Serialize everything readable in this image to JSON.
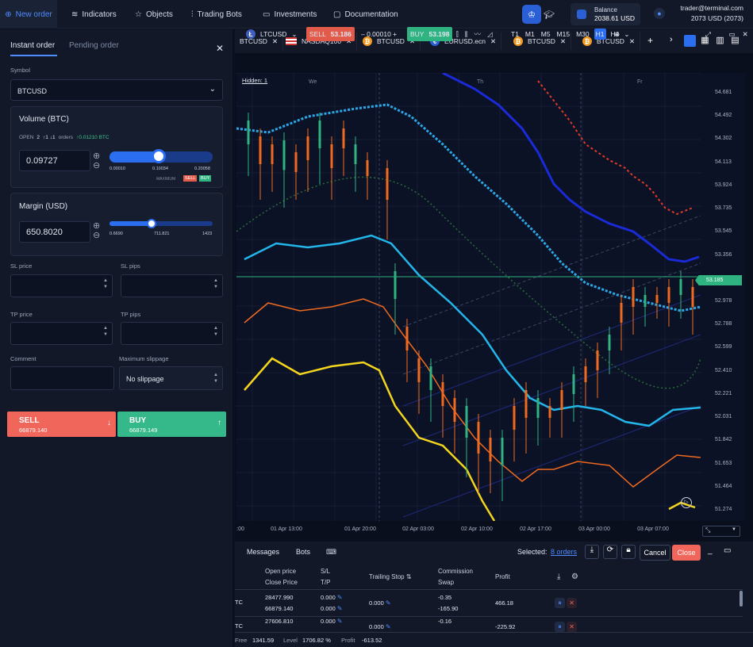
{
  "topbar": {
    "new_order": "New order",
    "indicators": "Indicators",
    "objects": "Objects",
    "trading_bots": "Trading Bots",
    "investments": "Investments",
    "documentation": "Documentation",
    "balance_label": "Balance",
    "balance_value": "2038.61 USD",
    "user_email": "trader@terminal.com",
    "user_balance": "2073 USD (2073)"
  },
  "order_panel": {
    "tab_instant": "Instant order",
    "tab_pending": "Pending order",
    "symbol_label": "Symbol",
    "symbol_value": "BTCUSD",
    "volume_title": "Volume (BTC)",
    "open_label": "OPEN",
    "open_count": "2",
    "open_up": "1",
    "open_down": "1",
    "orders_label": "orders",
    "open_delta": "0.01210 BTC",
    "volume_value": "0.09727",
    "vol_min": "0.00010",
    "vol_mid": "0.10034",
    "vol_max": "0.20058",
    "vol_level": 0.48,
    "maximum": "MAXIMUM",
    "sell_tag": "SELL",
    "buy_tag": "BUY",
    "margin_title": "Margin (USD)",
    "margin_value": "650.8020",
    "mar_min": "0.6690",
    "mar_mid": "711.821",
    "mar_max": "1423",
    "mar_level": 0.41,
    "sl_price": "SL price",
    "sl_pips": "SL pips",
    "tp_price": "TP price",
    "tp_pips": "TP pips",
    "comment": "Comment",
    "max_slippage": "Maximum slippage",
    "slippage_value": "No slippage",
    "sell_label": "SELL",
    "sell_price": "66879.140",
    "buy_label": "BUY",
    "buy_price": "66879.149"
  },
  "chart_tabs": [
    "BTCUSD",
    "NASDAQ100",
    "BTCUSD",
    "EURUSD.ecn",
    "BTCUSD",
    "BTCUSD"
  ],
  "toolbar": {
    "symbol": "LTCUSD",
    "sell": "SELL",
    "sell_price": "53.186",
    "spread": "– 0.00010 +",
    "buy": "BUY",
    "buy_price": "53.198",
    "timeframes": [
      "T1",
      "M1",
      "M5",
      "M15",
      "M30",
      "H1",
      "H4"
    ],
    "active_tf": "H1"
  },
  "chart": {
    "hidden": "Hidden: 1",
    "days": [
      "We",
      "Th",
      "Fr"
    ],
    "current_price": "53.185"
  },
  "chart_data": {
    "type": "line",
    "yticks": [
      "54.681",
      "54.492",
      "54.302",
      "54.113",
      "53.924",
      "53.735",
      "53.545",
      "53.356",
      "53.167",
      "52.978",
      "52.788",
      "52.599",
      "52.410",
      "52.221",
      "52.031",
      "51.842",
      "51.653",
      "51.464",
      "51.274"
    ],
    "xticks": [
      "01 Apr 13:00",
      "01 Apr 20:00",
      "02 Apr 03:00",
      "02 Apr 10:00",
      "02 Apr 17:00",
      "03 Apr 00:00",
      "03 Apr 07:00"
    ],
    "ylim": [
      51.274,
      54.681
    ],
    "current_price": 53.185
  },
  "bottom": {
    "messages": "Messages",
    "bots": "Bots",
    "selected": "Selected:",
    "orders_link": "8 orders",
    "cancel": "Cancel",
    "close": "Close",
    "headers": {
      "open_price": "Open price",
      "close_price": "Close Price",
      "sl": "S/L",
      "tp": "T/P",
      "trailing": "Trailing Stop",
      "commission": "Commission",
      "swap": "Swap",
      "profit": "Profit"
    },
    "rows": [
      {
        "sym": "TC",
        "open": "28477.990",
        "close": "66879.140",
        "sl": "0.000",
        "tp": "0.000",
        "trailing": "0.000",
        "commission": "-0.35",
        "swap": "-165.90",
        "profit": "466.18"
      },
      {
        "sym": "TC",
        "open": "27606.810",
        "close": "",
        "sl": "0.000",
        "tp": "",
        "trailing": "0.000",
        "commission": "-0.16",
        "swap": "",
        "profit": "-225.92"
      }
    ],
    "status": {
      "free_label": "Free",
      "free": "1341.59",
      "level_label": "Level",
      "level": "1706.82 %",
      "profit_label": "Profit",
      "profit": "-613.52"
    }
  }
}
